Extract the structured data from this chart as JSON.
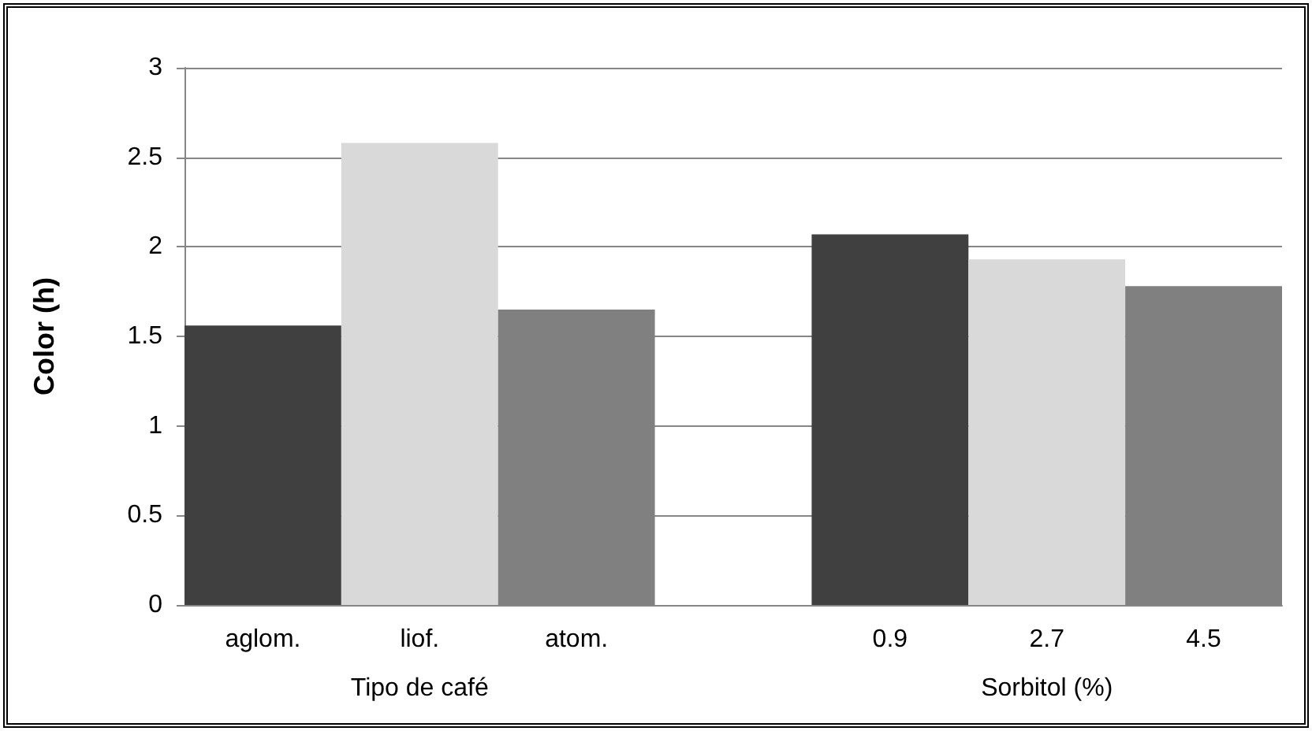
{
  "chart_data": {
    "type": "bar",
    "ylabel": "Color (h)",
    "categories": [
      "aglom.",
      "liof.",
      "atom.",
      null,
      "0.9",
      "2.7",
      "4.5"
    ],
    "values": [
      1.56,
      2.58,
      1.65,
      null,
      2.07,
      1.93,
      1.78
    ],
    "colors": [
      "#404040",
      "#d9d9d9",
      "#808080",
      null,
      "#404040",
      "#d9d9d9",
      "#808080"
    ],
    "ylim": [
      0,
      3
    ],
    "yticks": [
      0,
      0.5,
      1,
      1.5,
      2,
      2.5,
      3
    ],
    "grid": "y",
    "annotations": [
      "Tipo de café",
      "Sorbitol (%)"
    ]
  }
}
